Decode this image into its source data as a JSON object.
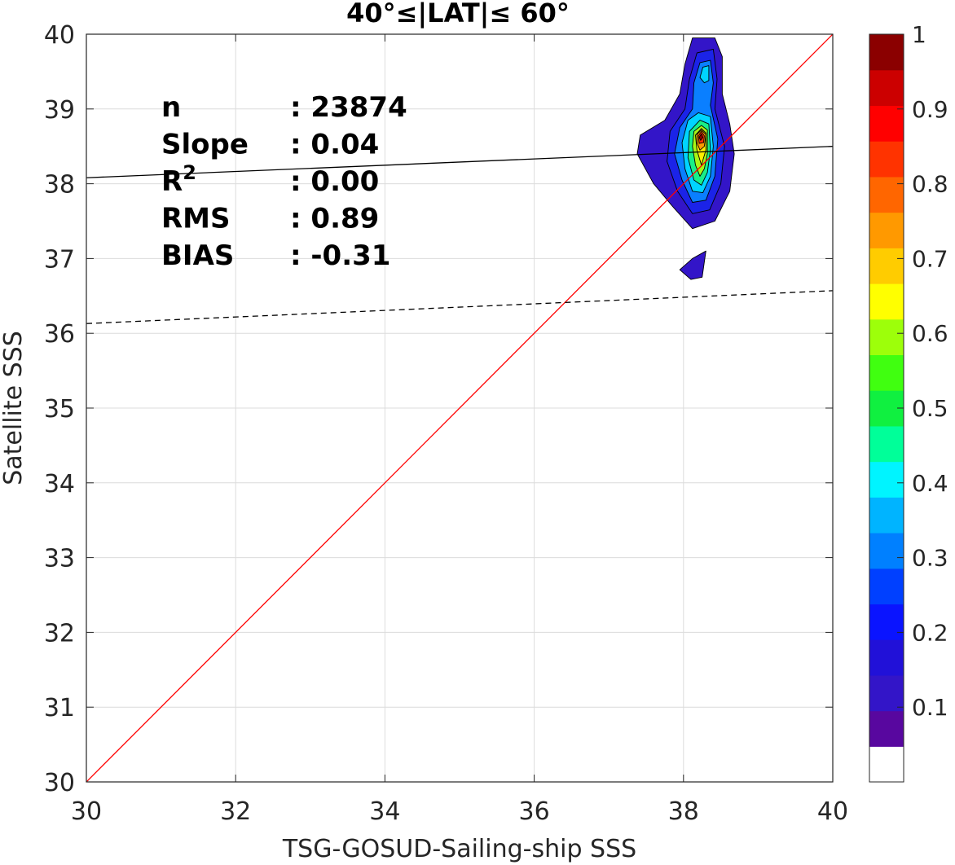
{
  "chart_data": {
    "type": "heatmap",
    "title": "40°≤|LAT|≤ 60°",
    "xlabel": "TSG-GOSUD-Sailing-ship SSS",
    "ylabel": "Satellite SSS",
    "xlim": [
      30,
      40
    ],
    "ylim": [
      30,
      40
    ],
    "xticks": [
      30,
      32,
      34,
      36,
      38,
      40
    ],
    "yticks": [
      30,
      31,
      32,
      33,
      34,
      35,
      36,
      37,
      38,
      39,
      40
    ],
    "grid": true,
    "stats": [
      {
        "label": "n",
        "value": ": 23874"
      },
      {
        "label": "Slope",
        "value": ": 0.04"
      },
      {
        "label": "R",
        "sup": "2",
        "value": ": 0.00"
      },
      {
        "label": "RMS",
        "value": ": 0.89"
      },
      {
        "label": "BIAS",
        "value": ": -0.31"
      }
    ],
    "lines": [
      {
        "name": "one-to-one",
        "color": "#ff0000",
        "style": "solid",
        "points": [
          [
            30,
            30
          ],
          [
            40,
            40
          ]
        ]
      },
      {
        "name": "regression-fit",
        "color": "#000000",
        "style": "solid",
        "points": [
          [
            30,
            38.08
          ],
          [
            40,
            38.5
          ]
        ]
      },
      {
        "name": "regression-fit-offset",
        "color": "#000000",
        "style": "dashed",
        "points": [
          [
            30,
            36.13
          ],
          [
            40,
            36.57
          ]
        ]
      }
    ],
    "density_contours": [
      {
        "level": 0.05,
        "color": "#3315c8",
        "points": [
          [
            38.12,
            39.95
          ],
          [
            38.42,
            39.95
          ],
          [
            38.52,
            39.7
          ],
          [
            38.52,
            39.2
          ],
          [
            38.62,
            38.8
          ],
          [
            38.68,
            38.4
          ],
          [
            38.62,
            37.9
          ],
          [
            38.42,
            37.5
          ],
          [
            38.12,
            37.4
          ],
          [
            37.85,
            37.7
          ],
          [
            37.6,
            38.0
          ],
          [
            37.38,
            38.4
          ],
          [
            37.42,
            38.65
          ],
          [
            37.75,
            38.85
          ],
          [
            37.95,
            39.2
          ],
          [
            38.02,
            39.6
          ]
        ]
      },
      {
        "level": 0.05,
        "color": "#3315c8",
        "points": [
          [
            38.12,
            37.0
          ],
          [
            38.3,
            37.1
          ],
          [
            38.25,
            36.75
          ],
          [
            38.1,
            36.72
          ],
          [
            37.95,
            36.85
          ]
        ]
      },
      {
        "level": 0.15,
        "color": "#1b23e8",
        "points": [
          [
            38.18,
            39.75
          ],
          [
            38.4,
            39.8
          ],
          [
            38.45,
            39.4
          ],
          [
            38.42,
            39.0
          ],
          [
            38.55,
            38.5
          ],
          [
            38.5,
            38.0
          ],
          [
            38.35,
            37.65
          ],
          [
            38.12,
            37.6
          ],
          [
            37.92,
            37.9
          ],
          [
            37.78,
            38.3
          ],
          [
            37.82,
            38.7
          ],
          [
            38.02,
            39.0
          ],
          [
            38.08,
            39.4
          ]
        ]
      },
      {
        "level": 0.25,
        "color": "#0a7fff",
        "points": [
          [
            38.22,
            39.62
          ],
          [
            38.36,
            39.65
          ],
          [
            38.4,
            39.35
          ],
          [
            38.36,
            39.05
          ],
          [
            38.46,
            38.6
          ],
          [
            38.42,
            38.1
          ],
          [
            38.3,
            37.78
          ],
          [
            38.12,
            37.75
          ],
          [
            37.98,
            38.05
          ],
          [
            37.88,
            38.4
          ],
          [
            37.95,
            38.75
          ],
          [
            38.12,
            39.0
          ],
          [
            38.14,
            39.35
          ]
        ]
      },
      {
        "level": 0.35,
        "color": "#00d4ff",
        "points": [
          [
            38.26,
            39.56
          ],
          [
            38.34,
            39.58
          ],
          [
            38.34,
            39.38
          ],
          [
            38.28,
            39.35
          ],
          [
            38.22,
            39.42
          ]
        ]
      },
      {
        "level": 0.35,
        "color": "#00d4ff",
        "points": [
          [
            38.2,
            38.95
          ],
          [
            38.36,
            38.9
          ],
          [
            38.4,
            38.5
          ],
          [
            38.36,
            38.1
          ],
          [
            38.26,
            37.88
          ],
          [
            38.12,
            37.9
          ],
          [
            38.02,
            38.2
          ],
          [
            37.98,
            38.55
          ],
          [
            38.06,
            38.85
          ]
        ]
      },
      {
        "level": 0.45,
        "color": "#18ef88",
        "points": [
          [
            38.22,
            38.85
          ],
          [
            38.34,
            38.8
          ],
          [
            38.36,
            38.45
          ],
          [
            38.32,
            38.15
          ],
          [
            38.24,
            37.98
          ],
          [
            38.14,
            38.05
          ],
          [
            38.06,
            38.35
          ],
          [
            38.08,
            38.7
          ]
        ]
      },
      {
        "level": 0.55,
        "color": "#a8f515",
        "points": [
          [
            38.24,
            38.78
          ],
          [
            38.32,
            38.72
          ],
          [
            38.32,
            38.4
          ],
          [
            38.28,
            38.2
          ],
          [
            38.22,
            38.1
          ],
          [
            38.16,
            38.25
          ],
          [
            38.12,
            38.5
          ],
          [
            38.14,
            38.7
          ]
        ]
      },
      {
        "level": 0.65,
        "color": "#ffee00",
        "points": [
          [
            38.24,
            38.74
          ],
          [
            38.3,
            38.68
          ],
          [
            38.3,
            38.45
          ],
          [
            38.24,
            38.25
          ],
          [
            38.18,
            38.45
          ],
          [
            38.16,
            38.65
          ]
        ]
      },
      {
        "level": 0.75,
        "color": "#ff9a00",
        "points": [
          [
            38.24,
            38.72
          ],
          [
            38.3,
            38.66
          ],
          [
            38.28,
            38.5
          ],
          [
            38.22,
            38.45
          ],
          [
            38.18,
            38.55
          ],
          [
            38.18,
            38.66
          ]
        ]
      },
      {
        "level": 0.85,
        "color": "#ff3000",
        "points": [
          [
            38.24,
            38.7
          ],
          [
            38.28,
            38.64
          ],
          [
            38.27,
            38.55
          ],
          [
            38.21,
            38.54
          ],
          [
            38.2,
            38.64
          ]
        ]
      },
      {
        "level": 0.95,
        "color": "#8b0000",
        "points": [
          [
            38.24,
            38.67
          ],
          [
            38.26,
            38.62
          ],
          [
            38.23,
            38.58
          ],
          [
            38.21,
            38.62
          ]
        ]
      }
    ],
    "colorbar": {
      "range": [
        0,
        1
      ],
      "ticks": [
        "0.1",
        "0.2",
        "0.3",
        "0.4",
        "0.5",
        "0.6",
        "0.7",
        "0.8",
        "0.9",
        "1"
      ],
      "tick_values": [
        0.1,
        0.2,
        0.3,
        0.4,
        0.5,
        0.6,
        0.7,
        0.8,
        0.9,
        1.0
      ],
      "colors": [
        "#ffffff",
        "#58079f",
        "#3315c8",
        "#2111d8",
        "#0a14ff",
        "#0040ff",
        "#0080ff",
        "#00b4ff",
        "#00f4ff",
        "#00ff99",
        "#10f040",
        "#40ff10",
        "#9dff0a",
        "#ffff00",
        "#ffcc00",
        "#ff9900",
        "#ff6600",
        "#ff3300",
        "#ff0000",
        "#cc0000",
        "#8b0000"
      ]
    }
  }
}
